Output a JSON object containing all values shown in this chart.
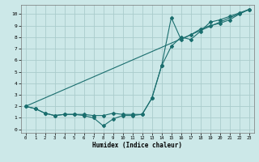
{
  "xlabel": "Humidex (Indice chaleur)",
  "bg_color": "#cce8e8",
  "grid_color": "#aacccc",
  "line_color": "#1a6e6e",
  "xlim": [
    -0.5,
    23.5
  ],
  "ylim": [
    -0.3,
    10.8
  ],
  "xticks": [
    0,
    1,
    2,
    3,
    4,
    5,
    6,
    7,
    8,
    9,
    10,
    11,
    12,
    13,
    14,
    15,
    16,
    17,
    18,
    19,
    20,
    21,
    22,
    23
  ],
  "yticks": [
    0,
    1,
    2,
    3,
    4,
    5,
    6,
    7,
    8,
    9,
    10
  ],
  "line1_x": [
    0,
    1,
    2,
    3,
    4,
    5,
    6,
    7,
    8,
    9,
    10,
    11,
    12,
    13,
    14,
    15,
    16,
    17,
    18,
    19,
    20,
    21,
    22,
    23
  ],
  "line1_y": [
    2.0,
    1.8,
    1.4,
    1.2,
    1.3,
    1.3,
    1.3,
    1.2,
    1.2,
    1.4,
    1.3,
    1.3,
    1.3,
    2.7,
    5.5,
    7.2,
    8.0,
    7.8,
    8.5,
    9.3,
    9.5,
    9.8,
    10.1,
    10.4
  ],
  "line2_x": [
    0,
    1,
    2,
    3,
    4,
    5,
    6,
    7,
    8,
    9,
    10,
    11,
    12,
    13,
    14,
    15,
    16,
    17,
    18,
    19,
    20,
    21,
    22,
    23
  ],
  "line2_y": [
    2.0,
    1.8,
    1.4,
    1.2,
    1.3,
    1.3,
    1.2,
    1.0,
    0.3,
    0.9,
    1.2,
    1.2,
    1.3,
    2.7,
    5.5,
    9.7,
    7.8,
    8.2,
    8.7,
    9.0,
    9.2,
    9.5,
    10.0,
    10.4
  ],
  "line3_x": [
    0,
    23
  ],
  "line3_y": [
    2.0,
    10.4
  ]
}
